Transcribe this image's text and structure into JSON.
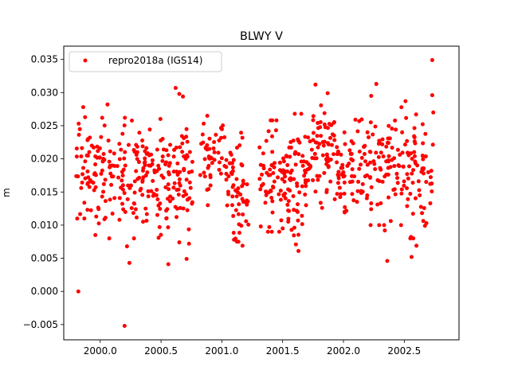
{
  "chart_data": {
    "type": "scatter",
    "title": "BLWY V",
    "xlabel": "",
    "ylabel": "m",
    "xlim": [
      1999.7,
      2002.95
    ],
    "ylim": [
      -0.0073,
      0.037
    ],
    "xticks": [
      2000.0,
      2000.5,
      2001.0,
      2001.5,
      2002.0,
      2002.5
    ],
    "xtick_labels": [
      "2000.0",
      "2000.5",
      "2001.0",
      "2001.5",
      "2002.0",
      "2002.5"
    ],
    "yticks": [
      -0.005,
      0.0,
      0.005,
      0.01,
      0.015,
      0.02,
      0.025,
      0.03,
      0.035
    ],
    "ytick_labels": [
      "−0.005",
      "0.000",
      "0.005",
      "0.010",
      "0.015",
      "0.020",
      "0.025",
      "0.030",
      "0.035"
    ],
    "grid": false,
    "legend_position": "top-left",
    "series": [
      {
        "name": "repro2018a (IGS14)",
        "color": "#ff0000",
        "marker": "dot",
        "points": [
          [
            1999.82,
            0.0
          ],
          [
            2000.2,
            -0.0052
          ],
          [
            2002.73,
            0.0349
          ],
          [
            2002.27,
            0.0313
          ],
          [
            2001.77,
            0.0312
          ],
          [
            2000.62,
            0.0307
          ],
          [
            2000.65,
            0.0298
          ],
          [
            2002.73,
            0.0296
          ],
          [
            2001.87,
            0.0299
          ],
          [
            1999.86,
            0.0278
          ],
          [
            2000.06,
            0.0282
          ],
          [
            2002.51,
            0.0287
          ],
          [
            2000.68,
            0.0294
          ],
          [
            2000.56,
            0.0041
          ],
          [
            2000.24,
            0.0043
          ],
          [
            2001.63,
            0.0061
          ],
          [
            2002.36,
            0.0046
          ],
          [
            2002.56,
            0.0052
          ],
          [
            2000.71,
            0.0049
          ],
          [
            2000.22,
            0.0068
          ],
          [
            2001.17,
            0.0069
          ],
          [
            2002.6,
            0.0069
          ],
          [
            1999.96,
            0.0085
          ],
          [
            2000.48,
            0.0081
          ],
          [
            2001.1,
            0.0078
          ],
          [
            2002.34,
            0.0092
          ],
          [
            2001.5,
            0.0095
          ],
          [
            2002.67,
            0.0099
          ],
          [
            2001.32,
            0.0098
          ],
          [
            2000.65,
            0.0074
          ],
          [
            2000.73,
            0.0072
          ],
          [
            2001.39,
            0.0097
          ]
        ],
        "bands": [
          {
            "x": [
              1999.8,
              1999.98
            ],
            "y": [
              0.011,
              0.028
            ],
            "n": 48
          },
          {
            "x": [
              1999.98,
              2000.28
            ],
            "y": [
              0.008,
              0.0262
            ],
            "n": 75
          },
          {
            "x": [
              2000.28,
              2000.56
            ],
            "y": [
              0.0085,
              0.0262
            ],
            "n": 88
          },
          {
            "x": [
              2000.56,
              2000.76
            ],
            "y": [
              0.009,
              0.0258
            ],
            "n": 60
          },
          {
            "x": [
              2000.82,
              2001.04
            ],
            "y": [
              0.013,
              0.0265
            ],
            "n": 50
          },
          {
            "x": [
              2001.04,
              2001.22
            ],
            "y": [
              0.0075,
              0.024
            ],
            "n": 55
          },
          {
            "x": [
              2001.3,
              2001.52
            ],
            "y": [
              0.009,
              0.0258
            ],
            "n": 62
          },
          {
            "x": [
              2001.52,
              2001.72
            ],
            "y": [
              0.007,
              0.0268
            ],
            "n": 70
          },
          {
            "x": [
              2001.72,
              2001.95
            ],
            "y": [
              0.012,
              0.029
            ],
            "n": 70
          },
          {
            "x": [
              2001.95,
              2002.22
            ],
            "y": [
              0.011,
              0.027
            ],
            "n": 72
          },
          {
            "x": [
              2002.22,
              2002.48
            ],
            "y": [
              0.01,
              0.0295
            ],
            "n": 70
          },
          {
            "x": [
              2002.48,
              2002.74
            ],
            "y": [
              0.008,
              0.027
            ],
            "n": 68
          }
        ]
      }
    ]
  }
}
